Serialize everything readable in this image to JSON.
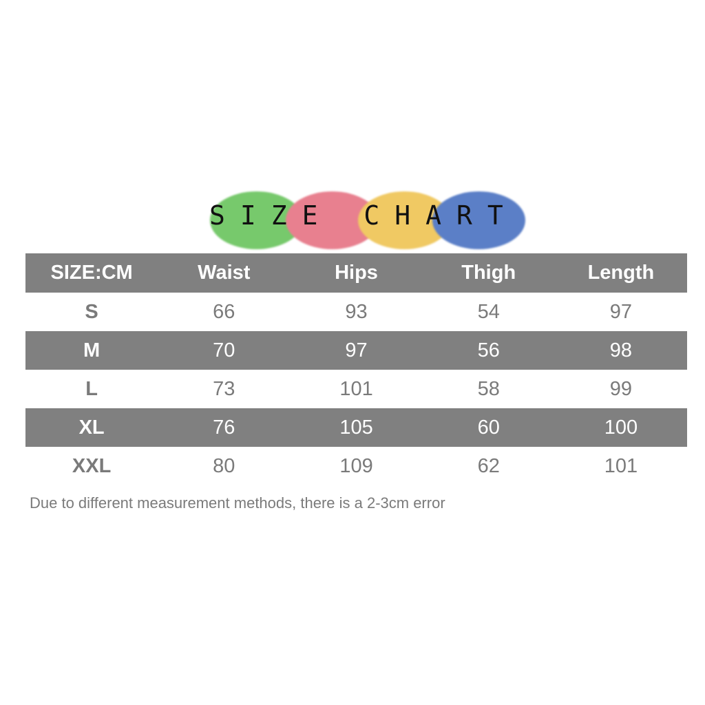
{
  "title": "SIZE CHART",
  "colors": {
    "blob_green": "#77c96c",
    "blob_pink": "#e8808f",
    "blob_yellow": "#f0c963",
    "blob_blue": "#5b7fc7",
    "shaded_row": "#808080",
    "text_gray": "#7a7a7a"
  },
  "table": {
    "headers": [
      "SIZE:CM",
      "Waist",
      "Hips",
      "Thigh",
      "Length"
    ],
    "rows": [
      [
        "S",
        "66",
        "93",
        "54",
        "97"
      ],
      [
        "M",
        "70",
        "97",
        "56",
        "98"
      ],
      [
        "L",
        "73",
        "101",
        "58",
        "99"
      ],
      [
        "XL",
        "76",
        "105",
        "60",
        "100"
      ],
      [
        "XXL",
        "80",
        "109",
        "62",
        "101"
      ]
    ]
  },
  "note": "Due to different measurement methods, there is a 2-3cm error"
}
